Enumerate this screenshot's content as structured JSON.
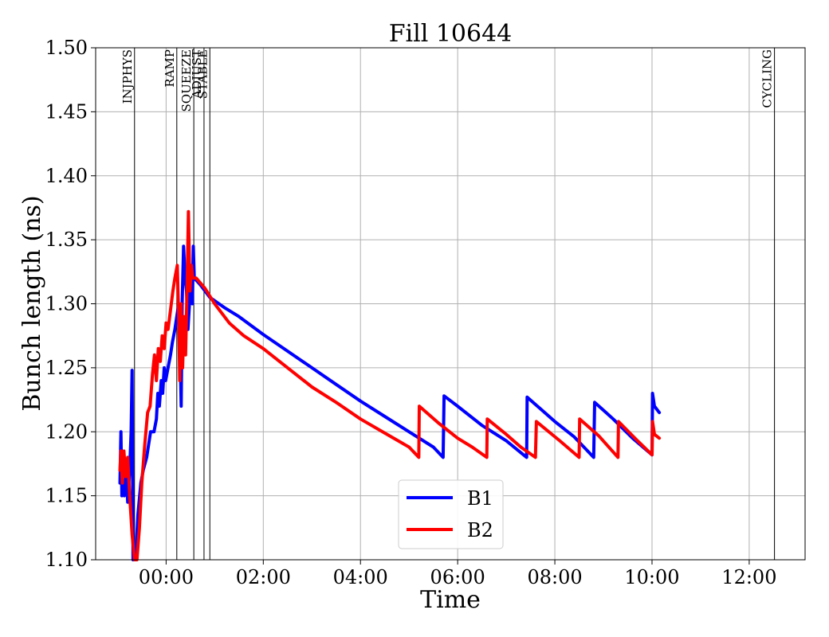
{
  "chart_data": {
    "type": "line",
    "title": "Fill 10644",
    "xlabel": "Time",
    "ylabel": "Bunch length (ns)",
    "x_unit": "hours relative to 00:00",
    "xlim": [
      -1.45,
      13.15
    ],
    "ylim": [
      1.1,
      1.5
    ],
    "x_ticks": [
      0,
      2,
      4,
      6,
      8,
      10,
      12
    ],
    "x_tick_labels": [
      "00:00",
      "02:00",
      "04:00",
      "06:00",
      "08:00",
      "10:00",
      "12:00"
    ],
    "y_ticks": [
      1.1,
      1.15,
      1.2,
      1.25,
      1.3,
      1.35,
      1.4,
      1.45,
      1.5
    ],
    "y_tick_labels": [
      "1.10",
      "1.15",
      "1.20",
      "1.25",
      "1.30",
      "1.35",
      "1.40",
      "1.45",
      "1.50"
    ],
    "grid": true,
    "legend_position": "bottom-center",
    "phases": [
      {
        "label": "INJPHYS",
        "x": -0.65
      },
      {
        "label": "RAMP",
        "x": 0.22
      },
      {
        "label": "SQUEEZE",
        "x": 0.57
      },
      {
        "label": "ADJUST",
        "x": 0.78
      },
      {
        "label": "STABLE",
        "x": 0.9
      },
      {
        "label": "CYCLING",
        "x": 12.52
      }
    ],
    "series": [
      {
        "name": "B1",
        "color": "#0000ff",
        "points": [
          [
            -0.95,
            1.16
          ],
          [
            -0.93,
            1.2
          ],
          [
            -0.91,
            1.15
          ],
          [
            -0.88,
            1.16
          ],
          [
            -0.86,
            1.15
          ],
          [
            -0.82,
            1.17
          ],
          [
            -0.79,
            1.145
          ],
          [
            -0.75,
            1.17
          ],
          [
            -0.72,
            1.2
          ],
          [
            -0.7,
            1.248
          ],
          [
            -0.68,
            1.1
          ],
          [
            -0.63,
            1.1
          ],
          [
            -0.58,
            1.135
          ],
          [
            -0.52,
            1.16
          ],
          [
            -0.47,
            1.17
          ],
          [
            -0.4,
            1.18
          ],
          [
            -0.32,
            1.2
          ],
          [
            -0.25,
            1.2
          ],
          [
            -0.2,
            1.21
          ],
          [
            -0.17,
            1.23
          ],
          [
            -0.14,
            1.22
          ],
          [
            -0.1,
            1.24
          ],
          [
            -0.07,
            1.23
          ],
          [
            -0.04,
            1.25
          ],
          [
            -0.01,
            1.24
          ],
          [
            0.04,
            1.25
          ],
          [
            0.09,
            1.26
          ],
          [
            0.13,
            1.27
          ],
          [
            0.18,
            1.28
          ],
          [
            0.22,
            1.29
          ],
          [
            0.26,
            1.3
          ],
          [
            0.29,
            1.26
          ],
          [
            0.31,
            1.22
          ],
          [
            0.33,
            1.3
          ],
          [
            0.36,
            1.345
          ],
          [
            0.39,
            1.32
          ],
          [
            0.42,
            1.31
          ],
          [
            0.45,
            1.28
          ],
          [
            0.48,
            1.3
          ],
          [
            0.51,
            1.33
          ],
          [
            0.54,
            1.3
          ],
          [
            0.56,
            1.345
          ],
          [
            0.58,
            1.32
          ],
          [
            0.7,
            1.315
          ],
          [
            0.9,
            1.305
          ],
          [
            1.2,
            1.297
          ],
          [
            1.5,
            1.29
          ],
          [
            2.0,
            1.276
          ],
          [
            2.5,
            1.263
          ],
          [
            3.0,
            1.25
          ],
          [
            3.5,
            1.237
          ],
          [
            4.0,
            1.224
          ],
          [
            4.5,
            1.212
          ],
          [
            5.0,
            1.2
          ],
          [
            5.5,
            1.188
          ],
          [
            5.7,
            1.18
          ],
          [
            5.72,
            1.228
          ],
          [
            6.0,
            1.22
          ],
          [
            6.5,
            1.205
          ],
          [
            7.0,
            1.193
          ],
          [
            7.42,
            1.18
          ],
          [
            7.43,
            1.227
          ],
          [
            7.7,
            1.218
          ],
          [
            8.0,
            1.208
          ],
          [
            8.4,
            1.196
          ],
          [
            8.8,
            1.18
          ],
          [
            8.82,
            1.223
          ],
          [
            9.2,
            1.21
          ],
          [
            9.6,
            1.195
          ],
          [
            10.0,
            1.182
          ],
          [
            10.01,
            1.23
          ],
          [
            10.05,
            1.22
          ],
          [
            10.15,
            1.215
          ]
        ]
      },
      {
        "name": "B2",
        "color": "#ff0000",
        "points": [
          [
            -0.95,
            1.17
          ],
          [
            -0.93,
            1.185
          ],
          [
            -0.9,
            1.16
          ],
          [
            -0.87,
            1.185
          ],
          [
            -0.83,
            1.165
          ],
          [
            -0.79,
            1.18
          ],
          [
            -0.75,
            1.15
          ],
          [
            -0.7,
            1.12
          ],
          [
            -0.65,
            1.1
          ],
          [
            -0.6,
            1.1
          ],
          [
            -0.55,
            1.125
          ],
          [
            -0.5,
            1.16
          ],
          [
            -0.44,
            1.19
          ],
          [
            -0.38,
            1.215
          ],
          [
            -0.33,
            1.22
          ],
          [
            -0.28,
            1.245
          ],
          [
            -0.24,
            1.26
          ],
          [
            -0.2,
            1.24
          ],
          [
            -0.16,
            1.265
          ],
          [
            -0.12,
            1.255
          ],
          [
            -0.08,
            1.275
          ],
          [
            -0.04,
            1.265
          ],
          [
            0.0,
            1.285
          ],
          [
            0.04,
            1.28
          ],
          [
            0.09,
            1.295
          ],
          [
            0.14,
            1.31
          ],
          [
            0.18,
            1.32
          ],
          [
            0.23,
            1.33
          ],
          [
            0.26,
            1.29
          ],
          [
            0.28,
            1.24
          ],
          [
            0.31,
            1.3
          ],
          [
            0.34,
            1.25
          ],
          [
            0.37,
            1.29
          ],
          [
            0.4,
            1.26
          ],
          [
            0.43,
            1.31
          ],
          [
            0.46,
            1.372
          ],
          [
            0.49,
            1.31
          ],
          [
            0.52,
            1.33
          ],
          [
            0.55,
            1.32
          ],
          [
            0.62,
            1.32
          ],
          [
            0.8,
            1.312
          ],
          [
            1.0,
            1.3
          ],
          [
            1.3,
            1.285
          ],
          [
            1.6,
            1.275
          ],
          [
            2.0,
            1.265
          ],
          [
            2.5,
            1.25
          ],
          [
            3.0,
            1.235
          ],
          [
            3.5,
            1.223
          ],
          [
            4.0,
            1.21
          ],
          [
            4.5,
            1.199
          ],
          [
            5.0,
            1.188
          ],
          [
            5.2,
            1.18
          ],
          [
            5.21,
            1.22
          ],
          [
            5.6,
            1.207
          ],
          [
            6.0,
            1.195
          ],
          [
            6.3,
            1.188
          ],
          [
            6.6,
            1.18
          ],
          [
            6.61,
            1.21
          ],
          [
            7.0,
            1.198
          ],
          [
            7.3,
            1.188
          ],
          [
            7.6,
            1.18
          ],
          [
            7.62,
            1.208
          ],
          [
            8.1,
            1.193
          ],
          [
            8.5,
            1.18
          ],
          [
            8.51,
            1.21
          ],
          [
            8.9,
            1.197
          ],
          [
            9.3,
            1.18
          ],
          [
            9.31,
            1.208
          ],
          [
            9.7,
            1.193
          ],
          [
            10.0,
            1.182
          ],
          [
            10.01,
            1.208
          ],
          [
            10.05,
            1.198
          ],
          [
            10.15,
            1.195
          ]
        ]
      }
    ]
  }
}
